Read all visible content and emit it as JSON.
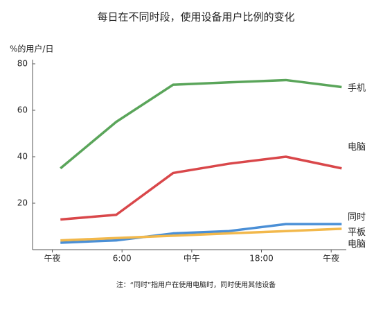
{
  "chart_data": {
    "type": "line",
    "title": "每日在不同时段，使用设备用户比例的变化",
    "y_label": "%的用户/日",
    "note": "注：“同时”指用户在使用电脑时，同时使用其他设备",
    "x": [
      0.7,
      5.5,
      10.4,
      15.2,
      20.1,
      24.9
    ],
    "xlim": [
      -1.7,
      25.3
    ],
    "xticks": [
      {
        "value": 0,
        "label": "午夜"
      },
      {
        "value": 6,
        "label": "6:00"
      },
      {
        "value": 12,
        "label": "中午"
      },
      {
        "value": 18,
        "label": "18:00"
      },
      {
        "value": 24,
        "label": "午夜"
      }
    ],
    "ylim": [
      0,
      80
    ],
    "yticks": [
      20,
      40,
      60,
      80
    ],
    "series": [
      {
        "name": "手机",
        "color": "#5aa55a",
        "values": [
          35,
          55,
          71,
          72,
          73,
          70
        ]
      },
      {
        "name": "电脑",
        "color": "#d9474a",
        "values": [
          13,
          15,
          33,
          37,
          40,
          35
        ]
      },
      {
        "name": "同时",
        "color": "#4a8fd6",
        "values": [
          3,
          4,
          7,
          8,
          11,
          11
        ]
      },
      {
        "name": "平板电脑",
        "color": "#f2b84b",
        "values": [
          4,
          5,
          6,
          7,
          8,
          9
        ]
      }
    ]
  }
}
